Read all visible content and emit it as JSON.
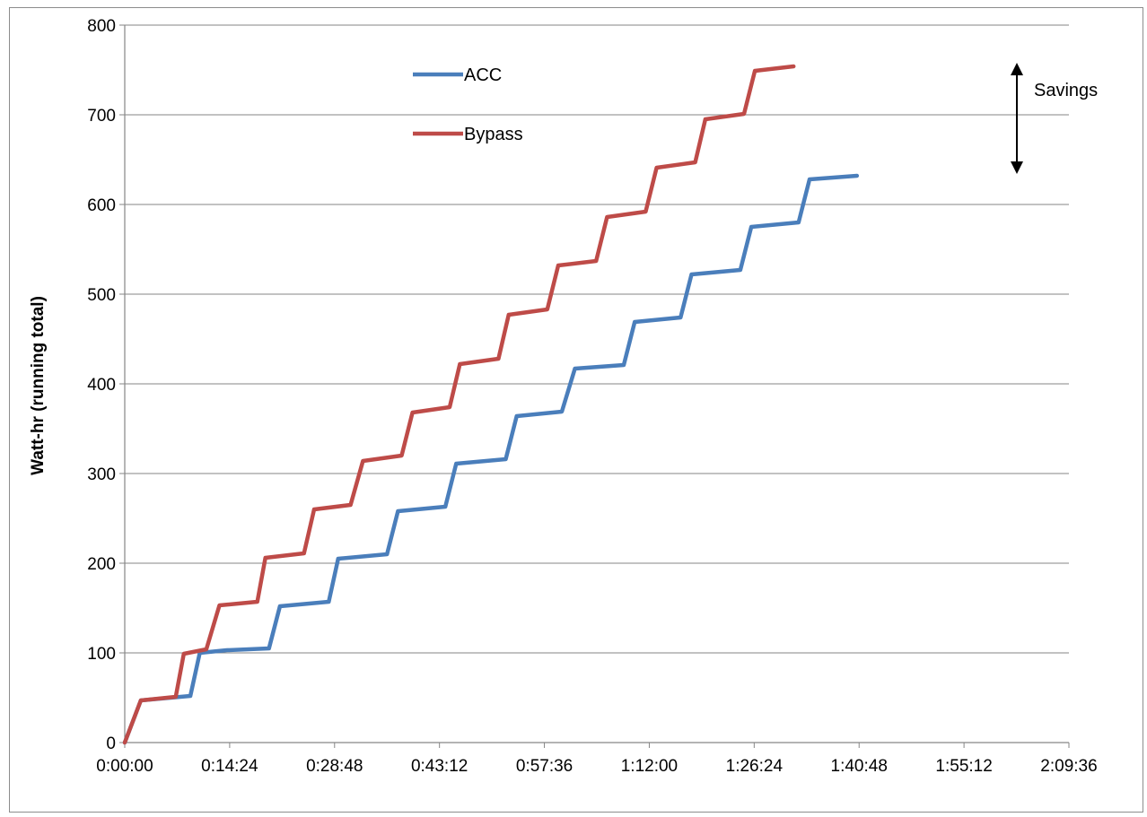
{
  "chart_data": {
    "type": "line",
    "title": "",
    "xlabel": "",
    "ylabel": "Watt-hr (running total)",
    "ylim": [
      0,
      800
    ],
    "yticks": [
      "0",
      "100",
      "200",
      "300",
      "400",
      "500",
      "600",
      "700",
      "800"
    ],
    "xlim_minutes": [
      0,
      129.6
    ],
    "xticks": [
      "0:00:00",
      "0:14:24",
      "0:28:48",
      "0:43:12",
      "0:57:36",
      "1:12:00",
      "1:26:24",
      "1:40:48",
      "1:55:12",
      "2:09:36"
    ],
    "grid": "horizontal",
    "legend": "top-left",
    "annotation": "Savings",
    "colors": {
      "ACC": "#4a7ebb",
      "Bypass": "#be4b48"
    },
    "series": [
      {
        "name": "ACC",
        "x_minutes": [
          0,
          2.2,
          9,
          10.3,
          14,
          19.8,
          21.3,
          28,
          29.3,
          36,
          37.5,
          44,
          45.5,
          52.3,
          53.8,
          60,
          61.8,
          68.5,
          70,
          76.3,
          77.8,
          84.5,
          86,
          92.5,
          94,
          100.5,
          102,
          108.5,
          110,
          115
        ],
        "y": [
          0,
          47,
          52,
          100,
          103,
          105,
          152,
          157,
          205,
          210,
          258,
          263,
          311,
          316,
          364,
          369,
          417,
          421,
          469,
          474,
          522,
          527,
          575,
          580,
          628,
          632,
          null,
          null,
          null,
          null
        ]
      },
      {
        "name": "Bypass",
        "x_minutes": [
          0,
          2.2,
          7,
          8.1,
          11.2,
          13,
          18.2,
          19.3,
          24.6,
          26,
          31,
          32.7,
          38,
          39.5,
          44.6,
          46,
          51.3,
          52.7,
          58,
          59.5,
          64.7,
          66.2,
          71.5,
          73,
          78.3,
          79.7,
          85,
          86.5,
          91.8,
          93.3,
          98.6,
          100,
          105.3,
          106.8,
          111.7
        ],
        "y": [
          0,
          47,
          51,
          99,
          104,
          153,
          157,
          206,
          211,
          260,
          265,
          314,
          320,
          368,
          374,
          422,
          428,
          477,
          483,
          532,
          537,
          586,
          592,
          641,
          647,
          695,
          701,
          749,
          754,
          null,
          null,
          null,
          null,
          null,
          null
        ]
      }
    ]
  }
}
